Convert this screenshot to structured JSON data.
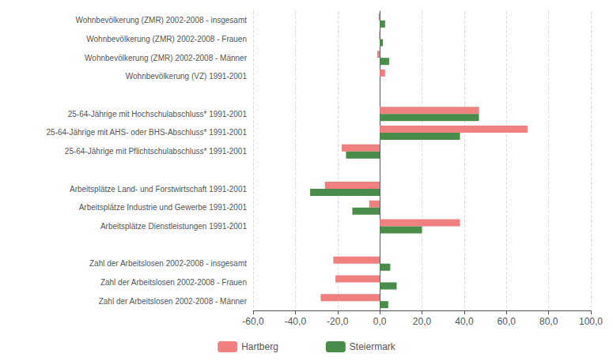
{
  "chart_data": {
    "type": "bar",
    "orientation": "horizontal",
    "categories": [
      "Wohnbevölkerung (ZMR) 2002-2008 - insgesamt",
      "Wohnbevölkerung (ZMR) 2002-2008 - Frauen",
      "Wohnbevölkerung (ZMR) 2002-2008 - Männer",
      "Wohnbevölkerung (VZ) 1991-2001",
      null,
      "25-64-Jährige mit Hochschulabschluss* 1991-2001",
      "25-64-Jährige mit AHS- oder BHS-Abschluss* 1991-2001",
      "25-64-Jährige mit Pflichtschulabschluss* 1991-2001",
      null,
      "Arbeitsplätze Land- und Forstwirtschaft 1991-2001",
      "Arbeitsplätze Industrie und Gewerbe 1991-2001",
      "Arbeitsplätze Dienstleistungen 1991-2001",
      null,
      "Zahl der Arbeitslosen 2002-2008 - insgesamt",
      "Zahl der Arbeitslosen 2002-2008 - Frauen",
      "Zahl der Arbeitslosen 2002-2008 - Männer"
    ],
    "series": [
      {
        "name": "Hartberg",
        "color": "#f08080",
        "values": [
          -0.5,
          -0.3,
          -1.2,
          2.5,
          null,
          47.0,
          70.0,
          -18.0,
          null,
          -26.0,
          -5.0,
          38.0,
          null,
          -22.0,
          -21.0,
          -28.0
        ]
      },
      {
        "name": "Steiermark",
        "color": "#4a8c4a",
        "values": [
          2.5,
          1.5,
          4.5,
          0.0,
          null,
          47.0,
          38.0,
          -16.0,
          null,
          -33.0,
          -13.0,
          20.0,
          null,
          5.0,
          8.0,
          4.0
        ]
      }
    ],
    "xlim": [
      -60,
      100
    ],
    "xticks": [
      {
        "value": -60,
        "label": "-60,0"
      },
      {
        "value": -40,
        "label": "-40,0"
      },
      {
        "value": -20,
        "label": "-20,0"
      },
      {
        "value": 0,
        "label": "0,0"
      },
      {
        "value": 20,
        "label": "20,0"
      },
      {
        "value": 40,
        "label": "40,0"
      },
      {
        "value": 60,
        "label": "60,0"
      },
      {
        "value": 80,
        "label": "80,0"
      },
      {
        "value": 100,
        "label": "100,0"
      }
    ],
    "grid": true,
    "legend": "bottom"
  }
}
